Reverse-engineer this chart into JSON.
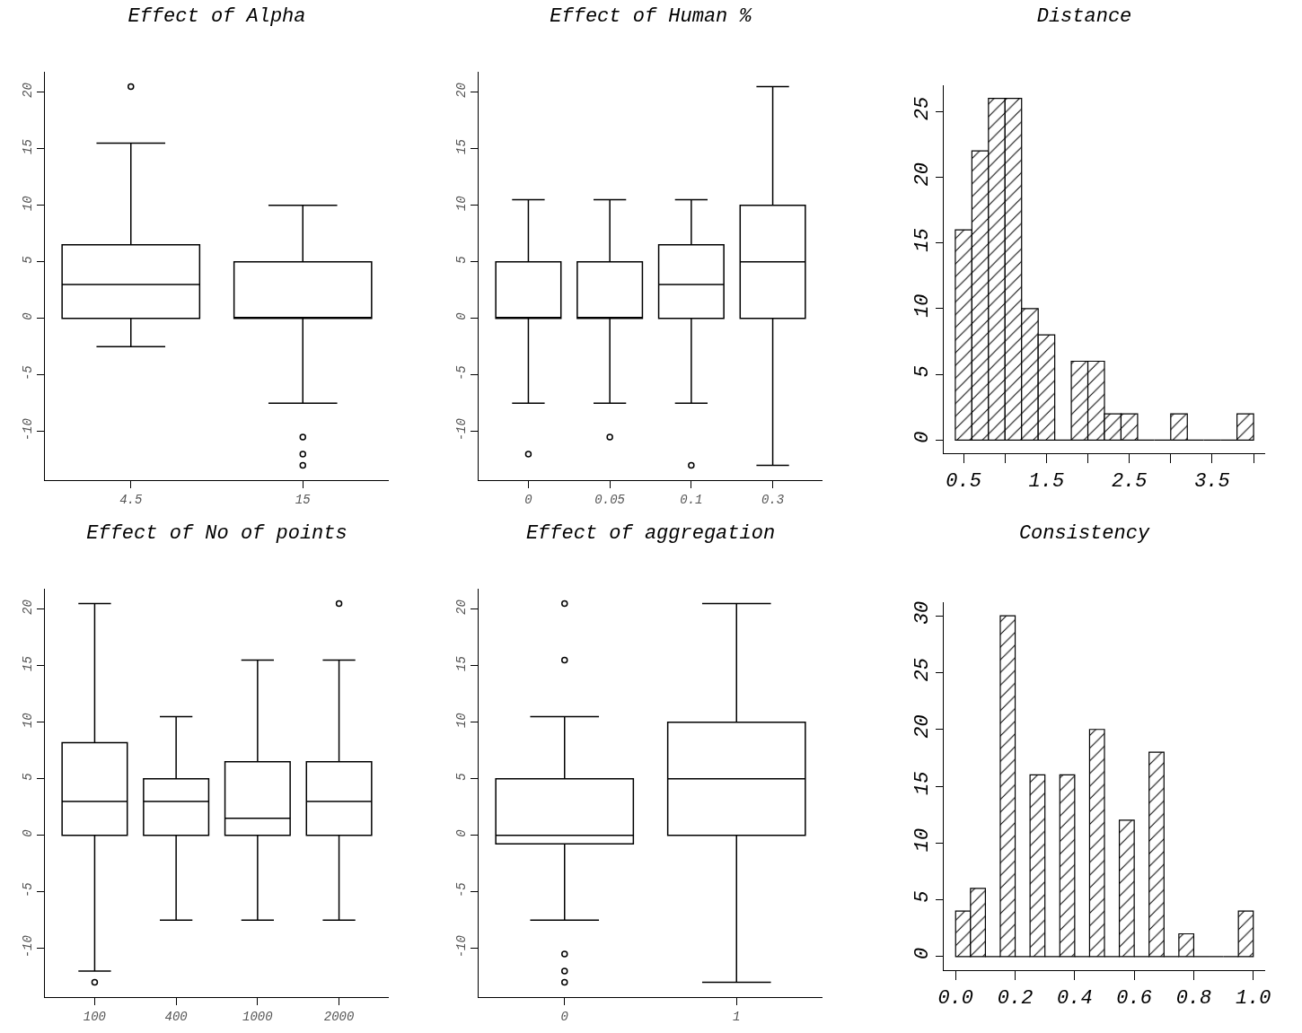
{
  "chart_data": [
    {
      "type": "box",
      "title": "Effect of Alpha",
      "categories": [
        "4.5",
        "15"
      ],
      "ylim": [
        -14.3,
        21.8
      ],
      "yticks": [
        -10,
        -5,
        0,
        5,
        10,
        15,
        20
      ],
      "boxes": [
        {
          "low": -2.5,
          "q1": 0,
          "median": 3,
          "q3": 6.5,
          "high": 15.5,
          "outliers": [
            20.5
          ]
        },
        {
          "low": -7.5,
          "q1": 0,
          "median": 0,
          "q3": 5,
          "high": 10,
          "outliers": [
            -10.5,
            -12,
            -13
          ]
        }
      ]
    },
    {
      "type": "box",
      "title": "Effect of Human %",
      "categories": [
        "0",
        "0.05",
        "0.1",
        "0.3"
      ],
      "ylim": [
        -14.3,
        21.8
      ],
      "yticks": [
        -10,
        -5,
        0,
        5,
        10,
        15,
        20
      ],
      "boxes": [
        {
          "low": -7.5,
          "q1": 0,
          "median": 0,
          "q3": 5,
          "high": 10.5,
          "outliers": [
            -12
          ]
        },
        {
          "low": -7.5,
          "q1": 0,
          "median": 0,
          "q3": 5,
          "high": 10.5,
          "outliers": [
            -10.5
          ]
        },
        {
          "low": -7.5,
          "q1": 0,
          "median": 3,
          "q3": 6.5,
          "high": 10.5,
          "outliers": [
            -13
          ]
        },
        {
          "low": -13,
          "q1": 0,
          "median": 5,
          "q3": 10,
          "high": 20.5
        }
      ]
    },
    {
      "type": "histogram",
      "title": "Distance",
      "bins": [
        0.4,
        0.6,
        0.8,
        1.0,
        1.2,
        1.4,
        1.6,
        1.8,
        2.0,
        2.2,
        2.4,
        2.6,
        2.8,
        3.0,
        3.2,
        3.4,
        3.6,
        3.8,
        4.0
      ],
      "values": [
        16,
        22,
        26,
        26,
        10,
        8,
        0,
        6,
        6,
        2,
        2,
        0,
        0,
        2,
        0,
        0,
        0,
        2
      ],
      "xlim": [
        0.26,
        4.14
      ],
      "ylim": [
        -1,
        27
      ],
      "xticks": [
        0.5,
        {
          "value": 1,
          "label": null
        },
        1.5,
        {
          "value": 2,
          "label": null
        },
        2.5,
        {
          "value": 3,
          "label": null
        },
        3.5,
        {
          "value": 4,
          "label": null
        }
      ],
      "yticks": [
        0,
        5,
        10,
        15,
        20,
        25
      ]
    },
    {
      "type": "box",
      "title": "Effect of No of points",
      "categories": [
        "100",
        "400",
        "1000",
        "2000"
      ],
      "ylim": [
        -14.3,
        21.8
      ],
      "yticks": [
        -10,
        -5,
        0,
        5,
        10,
        15,
        20
      ],
      "boxes": [
        {
          "low": -12,
          "q1": 0,
          "median": 3,
          "q3": 8.2,
          "high": 20.5,
          "outliers": [
            -13
          ]
        },
        {
          "low": -7.5,
          "q1": 0,
          "median": 3,
          "q3": 5,
          "high": 10.5
        },
        {
          "low": -7.5,
          "q1": 0,
          "median": 1.5,
          "q3": 6.5,
          "high": 15.5
        },
        {
          "low": -7.5,
          "q1": 0,
          "median": 3,
          "q3": 6.5,
          "high": 15.5,
          "outliers": [
            20.5
          ]
        }
      ]
    },
    {
      "type": "box",
      "title": "Effect of aggregation",
      "categories": [
        "0",
        "1"
      ],
      "ylim": [
        -14.3,
        21.8
      ],
      "yticks": [
        -10,
        -5,
        0,
        5,
        10,
        15,
        20
      ],
      "boxes": [
        {
          "low": -7.5,
          "q1": -0.75,
          "median": 0,
          "q3": 5,
          "high": 10.5,
          "outliers": [
            20.5,
            15.5,
            -10.5,
            -12,
            -13
          ]
        },
        {
          "low": -13,
          "q1": 0,
          "median": 5,
          "q3": 10,
          "high": 20.5
        }
      ]
    },
    {
      "type": "histogram",
      "title": "Consistency",
      "bins": [
        0,
        0.05,
        0.1,
        0.15,
        0.2,
        0.25,
        0.3,
        0.35,
        0.4,
        0.45,
        0.5,
        0.55,
        0.6,
        0.65,
        0.7,
        0.75,
        0.8,
        0.85,
        0.9,
        0.95,
        1.0
      ],
      "values": [
        4,
        6,
        0,
        30,
        0,
        16,
        0,
        16,
        0,
        20,
        0,
        12,
        0,
        18,
        0,
        2,
        0,
        0,
        0,
        4
      ],
      "xlim": [
        -0.04,
        1.04
      ],
      "ylim": [
        -1.2,
        31.2
      ],
      "xticks": [
        {
          "value": 0,
          "label": "0.0"
        },
        0.2,
        0.4,
        0.6,
        0.8,
        {
          "value": 1,
          "label": "1.0"
        }
      ],
      "yticks": [
        0,
        5,
        10,
        15,
        20,
        25,
        30
      ]
    }
  ]
}
